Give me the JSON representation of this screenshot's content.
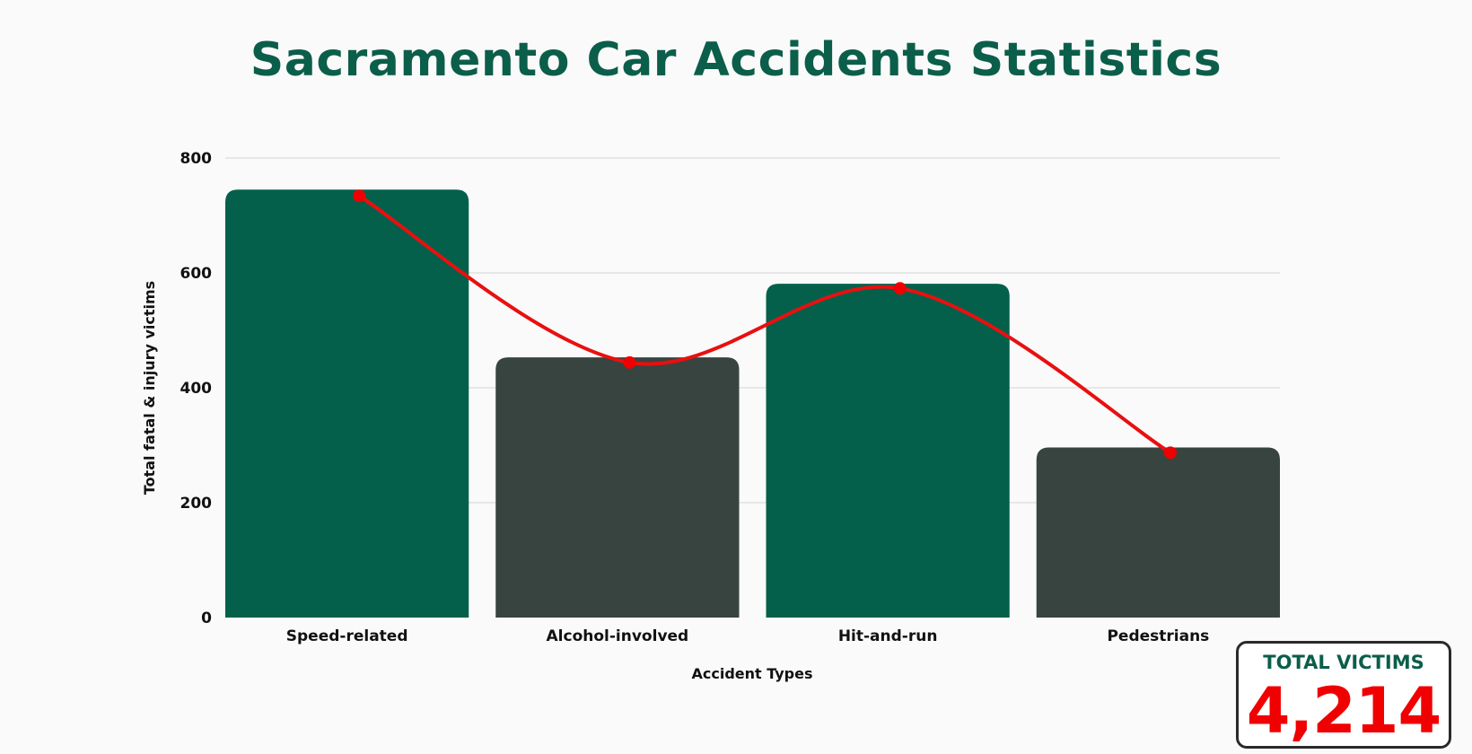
{
  "title": "Sacramento Car Accidents Statistics",
  "chart_data": {
    "type": "bar",
    "title": "Sacramento Car Accidents Statistics",
    "xlabel": "Accident Types",
    "ylabel": "Total fatal & injury victims",
    "categories": [
      "Speed-related",
      "Alcohol-involved",
      "Hit-and-run",
      "Pedestrians"
    ],
    "series": [
      {
        "type": "bar",
        "values": [
          745,
          453,
          581,
          296
        ],
        "colors": [
          "#04604b",
          "#38443f",
          "#04604b",
          "#38443f"
        ]
      },
      {
        "type": "line",
        "smooth": true,
        "values": [
          734,
          444,
          573,
          287
        ],
        "color": "#e8100f"
      }
    ],
    "ylim": [
      0,
      800
    ],
    "yticks": [
      0,
      200,
      400,
      600,
      800
    ],
    "grid": true
  },
  "summary": {
    "label": "TOTAL VICTIMS",
    "value": "4,214"
  }
}
